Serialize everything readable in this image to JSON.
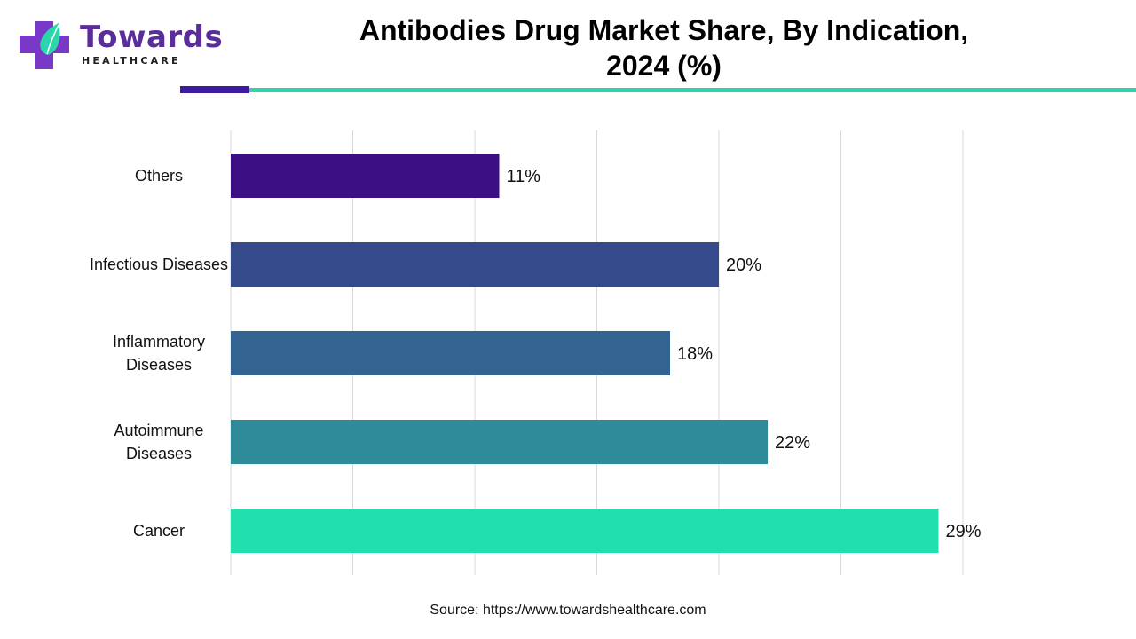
{
  "logo": {
    "name": "Towards",
    "tagline": "HEALTHCARE"
  },
  "title_line1": "Antibodies Drug Market Share, By Indication,",
  "title_line2": "2024 (%)",
  "source": "Source: https://www.towardshealthcare.com",
  "colors": {
    "brand_purple": "#5b2d9a",
    "accent_bar": "#3d1a9e",
    "accent_line": "#2ad6aa",
    "gridline": "#d9d9d9"
  },
  "chart_data": {
    "type": "bar",
    "orientation": "horizontal",
    "title": "Antibodies Drug Market Share, By Indication, 2024 (%)",
    "xlabel": "",
    "ylabel": "",
    "xlim": [
      0,
      30
    ],
    "grid": true,
    "legend": "none",
    "categories": [
      "Others",
      "Infectious Diseases",
      "Inflammatory Diseases",
      "Autoimmune Diseases",
      "Cancer"
    ],
    "category_lines": [
      [
        "Others"
      ],
      [
        "Infectious Diseases"
      ],
      [
        "Inflammatory",
        "Diseases"
      ],
      [
        "Autoimmune",
        "Diseases"
      ],
      [
        "Cancer"
      ]
    ],
    "values": [
      11,
      20,
      18,
      22,
      29
    ],
    "value_labels": [
      "11%",
      "20%",
      "18%",
      "22%",
      "29%"
    ],
    "bar_colors": [
      "#3d0f84",
      "#354a8a",
      "#336391",
      "#2e8b9a",
      "#22dfae"
    ]
  }
}
